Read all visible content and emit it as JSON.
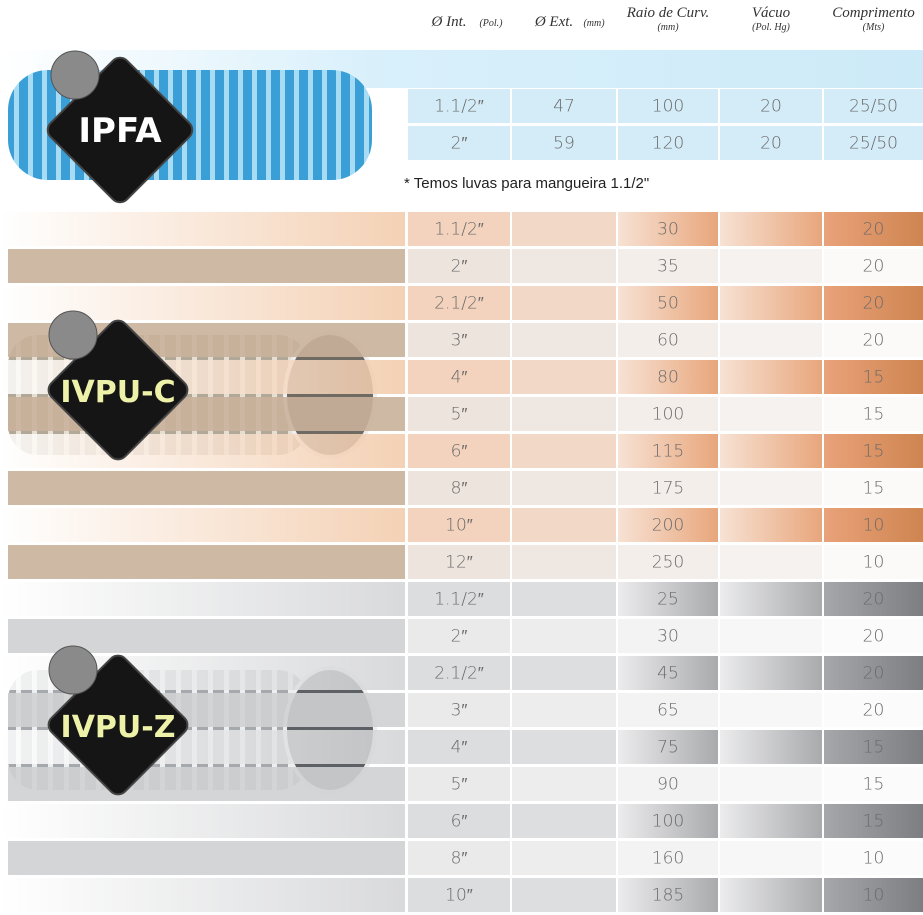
{
  "header": {
    "columns": [
      {
        "label": "Ø Int.",
        "unit": "(Pol.)"
      },
      {
        "label": "Ø Ext.",
        "unit": "(mm)"
      },
      {
        "label": "Raio de Curv.",
        "unit": "(mm)"
      },
      {
        "label": "Vácuo",
        "unit": "(Pol. Hg)"
      },
      {
        "label": "Comprimento",
        "unit": "(Mts)"
      }
    ]
  },
  "sections": [
    {
      "name": "IPFA",
      "note": "* Temos luvas para mangueira 1.1/2\"",
      "rows": [
        {
          "int": "1.1/2″",
          "ext": "47",
          "raio": "100",
          "vacuo": "20",
          "comp": "25/50"
        },
        {
          "int": "2″",
          "ext": "59",
          "raio": "120",
          "vacuo": "20",
          "comp": "25/50"
        }
      ]
    },
    {
      "name": "IVPU-C",
      "rows": [
        {
          "int": "1.1/2″",
          "raio": "30",
          "comp": "20"
        },
        {
          "int": "2″",
          "raio": "35",
          "comp": "20"
        },
        {
          "int": "2.1/2″",
          "raio": "50",
          "comp": "20"
        },
        {
          "int": "3″",
          "raio": "60",
          "comp": "20"
        },
        {
          "int": "4″",
          "raio": "80",
          "comp": "15"
        },
        {
          "int": "5″",
          "raio": "100",
          "comp": "15"
        },
        {
          "int": "6″",
          "raio": "115",
          "comp": "15"
        },
        {
          "int": "8″",
          "raio": "175",
          "comp": "15"
        },
        {
          "int": "10″",
          "raio": "200",
          "comp": "10"
        },
        {
          "int": "12″",
          "raio": "250",
          "comp": "10"
        }
      ]
    },
    {
      "name": "IVPU-Z",
      "rows": [
        {
          "int": "1.1/2″",
          "raio": "25",
          "comp": "20"
        },
        {
          "int": "2″",
          "raio": "30",
          "comp": "20"
        },
        {
          "int": "2.1/2″",
          "raio": "45",
          "comp": "20"
        },
        {
          "int": "3″",
          "raio": "65",
          "comp": "20"
        },
        {
          "int": "4″",
          "raio": "75",
          "comp": "15"
        },
        {
          "int": "5″",
          "raio": "90",
          "comp": "15"
        },
        {
          "int": "6″",
          "raio": "100",
          "comp": "15"
        },
        {
          "int": "8″",
          "raio": "160",
          "comp": "10"
        },
        {
          "int": "10″",
          "raio": "185",
          "comp": "10"
        }
      ]
    }
  ]
}
